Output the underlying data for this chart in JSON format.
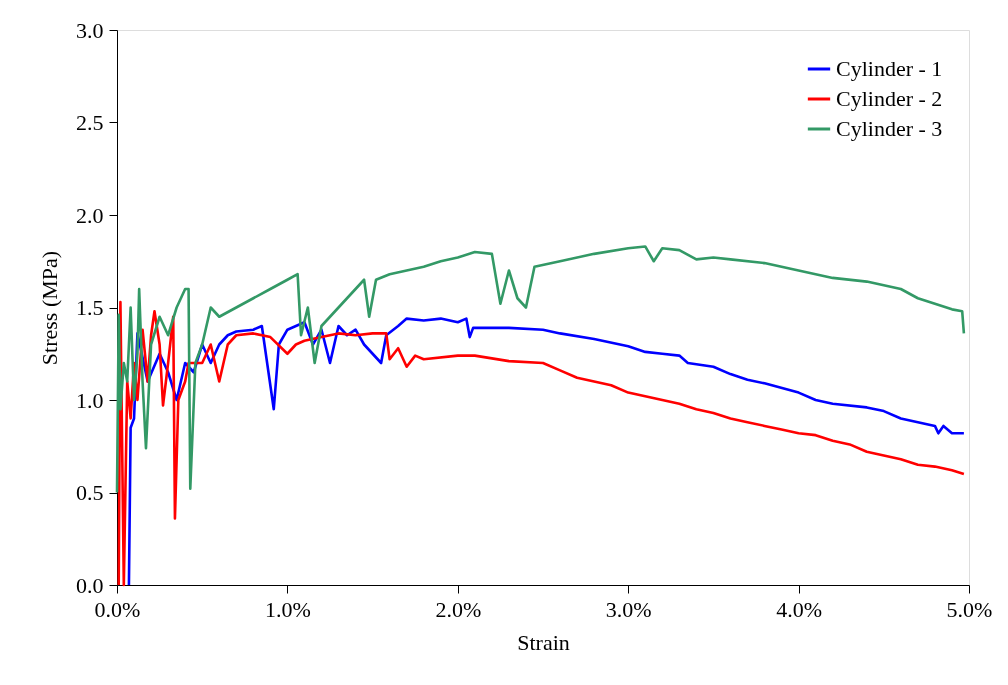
{
  "chart_data": {
    "type": "line",
    "xlabel": "Strain",
    "ylabel": "Stress (MPa)",
    "xlim": [
      0,
      0.05
    ],
    "ylim": [
      0,
      3.0
    ],
    "xticks": [
      {
        "value": 0,
        "label": "0.0%"
      },
      {
        "value": 0.01,
        "label": "1.0%"
      },
      {
        "value": 0.02,
        "label": "2.0%"
      },
      {
        "value": 0.03,
        "label": "3.0%"
      },
      {
        "value": 0.04,
        "label": "4.0%"
      },
      {
        "value": 0.05,
        "label": "5.0%"
      }
    ],
    "yticks": [
      {
        "value": 0,
        "label": "0.0"
      },
      0.5,
      {
        "value": 1,
        "label": "1.0"
      },
      1.5,
      {
        "value": 2,
        "label": "2.0"
      },
      2.5,
      {
        "value": 3,
        "label": "3.0"
      }
    ],
    "grid": false,
    "legend": "top right",
    "marker": "none",
    "line_style": "solid",
    "series": [
      {
        "name": "Cylinder - 1",
        "color": "#0000ff",
        "x": [
          0.0007,
          0.0008,
          0.001,
          0.0012,
          0.0018,
          0.0025,
          0.003,
          0.0035,
          0.004,
          0.0045,
          0.005,
          0.0055,
          0.006,
          0.0065,
          0.007,
          0.008,
          0.0085,
          0.0092,
          0.0095,
          0.01,
          0.011,
          0.0115,
          0.012,
          0.0125,
          0.013,
          0.0135,
          0.014,
          0.0145,
          0.015,
          0.0155,
          0.0158,
          0.0165,
          0.017,
          0.018,
          0.019,
          0.02,
          0.0205,
          0.0207,
          0.0209,
          0.023,
          0.025,
          0.026,
          0.028,
          0.03,
          0.031,
          0.032,
          0.033,
          0.0335,
          0.035,
          0.036,
          0.037,
          0.038,
          0.04,
          0.041,
          0.042,
          0.044,
          0.045,
          0.046,
          0.047,
          0.048,
          0.0482,
          0.0485,
          0.049,
          0.0497
        ],
        "values": [
          0.0,
          0.85,
          0.9,
          1.36,
          1.1,
          1.25,
          1.15,
          1.0,
          1.2,
          1.15,
          1.3,
          1.2,
          1.3,
          1.35,
          1.37,
          1.38,
          1.4,
          0.95,
          1.3,
          1.38,
          1.42,
          1.3,
          1.38,
          1.2,
          1.4,
          1.35,
          1.38,
          1.3,
          1.25,
          1.2,
          1.35,
          1.4,
          1.44,
          1.43,
          1.44,
          1.42,
          1.44,
          1.34,
          1.39,
          1.39,
          1.38,
          1.36,
          1.33,
          1.29,
          1.26,
          1.25,
          1.24,
          1.2,
          1.18,
          1.14,
          1.11,
          1.09,
          1.04,
          1.0,
          0.98,
          0.96,
          0.94,
          0.9,
          0.88,
          0.86,
          0.82,
          0.86,
          0.82,
          0.82
        ]
      },
      {
        "name": "Cylinder - 2",
        "color": "#ff0000",
        "x": [
          0.0001,
          0.0002,
          0.0004,
          0.0006,
          0.0008,
          0.001,
          0.0012,
          0.0015,
          0.0018,
          0.002,
          0.0022,
          0.0025,
          0.0027,
          0.003,
          0.0033,
          0.0034,
          0.0036,
          0.004,
          0.0042,
          0.005,
          0.0055,
          0.006,
          0.0065,
          0.007,
          0.008,
          0.009,
          0.01,
          0.0105,
          0.011,
          0.012,
          0.013,
          0.014,
          0.015,
          0.0158,
          0.016,
          0.0165,
          0.017,
          0.0175,
          0.018,
          0.02,
          0.021,
          0.023,
          0.025,
          0.026,
          0.027,
          0.028,
          0.029,
          0.03,
          0.031,
          0.032,
          0.033,
          0.034,
          0.035,
          0.036,
          0.037,
          0.038,
          0.039,
          0.04,
          0.041,
          0.042,
          0.043,
          0.044,
          0.045,
          0.046,
          0.047,
          0.048,
          0.049,
          0.0497
        ],
        "values": [
          0.0,
          1.53,
          0.0,
          1.1,
          0.9,
          1.2,
          1.0,
          1.38,
          1.1,
          1.35,
          1.48,
          1.3,
          0.97,
          1.2,
          1.45,
          0.36,
          1.0,
          1.1,
          1.2,
          1.2,
          1.3,
          1.1,
          1.3,
          1.35,
          1.36,
          1.34,
          1.25,
          1.3,
          1.32,
          1.34,
          1.36,
          1.35,
          1.36,
          1.36,
          1.22,
          1.28,
          1.18,
          1.24,
          1.22,
          1.24,
          1.24,
          1.21,
          1.2,
          1.16,
          1.12,
          1.1,
          1.08,
          1.04,
          1.02,
          1.0,
          0.98,
          0.95,
          0.93,
          0.9,
          0.88,
          0.86,
          0.84,
          0.82,
          0.81,
          0.78,
          0.76,
          0.72,
          0.7,
          0.68,
          0.65,
          0.64,
          0.62,
          0.6
        ]
      },
      {
        "name": "Cylinder - 3",
        "color": "#339966",
        "x": [
          0.0,
          0.0001,
          0.0002,
          0.0004,
          0.0006,
          0.0008,
          0.001,
          0.0012,
          0.0013,
          0.0015,
          0.0017,
          0.002,
          0.0025,
          0.003,
          0.0035,
          0.004,
          0.0042,
          0.0043,
          0.0046,
          0.005,
          0.0055,
          0.006,
          0.007,
          0.008,
          0.009,
          0.01,
          0.0106,
          0.0108,
          0.0112,
          0.0116,
          0.012,
          0.013,
          0.014,
          0.0145,
          0.0148,
          0.0152,
          0.016,
          0.017,
          0.018,
          0.019,
          0.02,
          0.021,
          0.022,
          0.0225,
          0.023,
          0.0235,
          0.024,
          0.0245,
          0.026,
          0.028,
          0.03,
          0.031,
          0.0315,
          0.032,
          0.033,
          0.034,
          0.035,
          0.036,
          0.038,
          0.039,
          0.04,
          0.041,
          0.042,
          0.044,
          0.045,
          0.046,
          0.047,
          0.048,
          0.049,
          0.0496,
          0.0497
        ],
        "values": [
          0.5,
          1.46,
          0.95,
          1.2,
          1.1,
          1.5,
          1.0,
          1.25,
          1.6,
          1.1,
          0.74,
          1.3,
          1.45,
          1.35,
          1.5,
          1.6,
          1.6,
          0.52,
          1.2,
          1.3,
          1.5,
          1.45,
          1.5,
          1.55,
          1.6,
          1.65,
          1.68,
          1.35,
          1.5,
          1.2,
          1.4,
          1.5,
          1.6,
          1.65,
          1.45,
          1.65,
          1.68,
          1.7,
          1.72,
          1.75,
          1.77,
          1.8,
          1.79,
          1.52,
          1.7,
          1.55,
          1.5,
          1.72,
          1.75,
          1.79,
          1.82,
          1.83,
          1.75,
          1.82,
          1.81,
          1.76,
          1.77,
          1.76,
          1.74,
          1.72,
          1.7,
          1.68,
          1.66,
          1.64,
          1.62,
          1.6,
          1.55,
          1.52,
          1.49,
          1.48,
          1.36
        ]
      }
    ]
  }
}
